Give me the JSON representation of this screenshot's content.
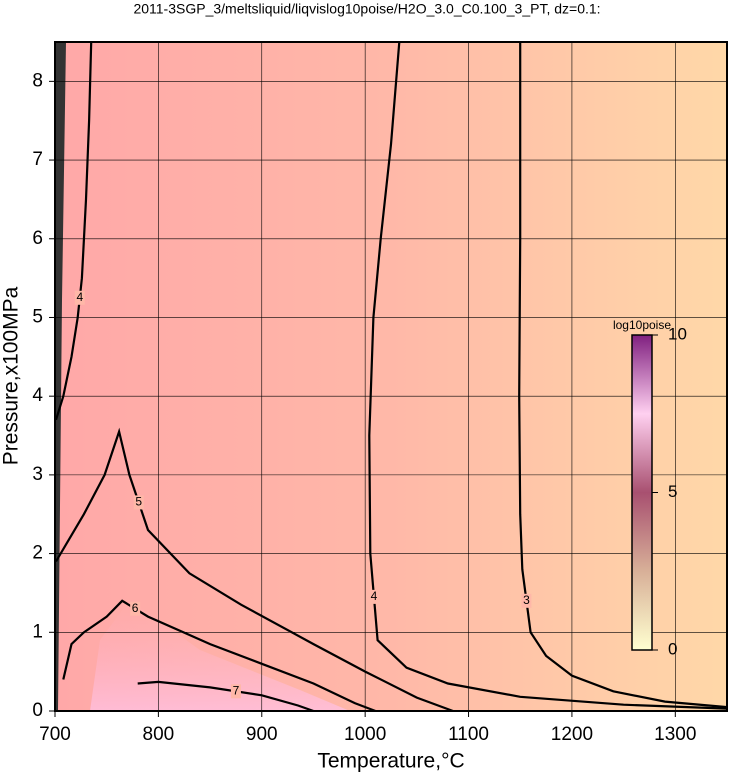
{
  "chart_data": {
    "type": "contour",
    "title": "2011-3SGP_3/meltsliquid/liqvislog10poise/H2O_3.0_C0.100_3_PT, dz=0.1:",
    "x_label": "Temperature,°C",
    "y_label": "Pressure,x100MPa",
    "xlim": [
      700,
      1350
    ],
    "xticks": [
      700,
      800,
      900,
      1000,
      1100,
      1200,
      1300
    ],
    "ylim": [
      0,
      8.5
    ],
    "yticks": [
      0,
      1,
      2,
      3,
      4,
      5,
      6,
      7,
      8
    ],
    "grid": true,
    "contours": [
      {
        "level": 3,
        "x": [
          1150,
          1150,
          1149,
          1150,
          1152,
          1160,
          1175,
          1200,
          1240,
          1290,
          1350
        ],
        "y": [
          8.5,
          6.0,
          4.0,
          2.5,
          1.8,
          1.0,
          0.7,
          0.45,
          0.25,
          0.12,
          0.05
        ]
      },
      {
        "level": 4,
        "x": [
          1033,
          1025,
          1015,
          1008,
          1004,
          1005,
          1012,
          1040,
          1080,
          1150,
          1250,
          1350
        ],
        "y": [
          8.5,
          7.2,
          6.0,
          5.0,
          3.5,
          2.0,
          0.9,
          0.55,
          0.35,
          0.18,
          0.08,
          0.03
        ]
      },
      {
        "level": 4,
        "x": [
          735,
          733,
          730,
          726,
          722,
          716,
          708,
          701
        ],
        "y": [
          8.5,
          7.5,
          6.5,
          5.5,
          5.0,
          4.5,
          4.0,
          3.7
        ]
      },
      {
        "level": 5,
        "x": [
          701,
          710,
          728,
          748,
          762,
          772,
          790,
          830,
          880,
          950,
          1000,
          1050,
          1085
        ],
        "y": [
          1.9,
          2.1,
          2.5,
          3.0,
          3.55,
          3.0,
          2.3,
          1.75,
          1.35,
          0.85,
          0.5,
          0.17,
          0.0
        ]
      },
      {
        "level": 6,
        "x": [
          708,
          716,
          728,
          750,
          765,
          790,
          850,
          900,
          950,
          990,
          1010
        ],
        "y": [
          0.4,
          0.85,
          1.0,
          1.2,
          1.4,
          1.2,
          0.85,
          0.6,
          0.35,
          0.1,
          0.0
        ]
      },
      {
        "level": 7,
        "x": [
          780,
          800,
          850,
          900,
          935,
          950
        ],
        "y": [
          0.35,
          0.37,
          0.3,
          0.2,
          0.07,
          0.0
        ]
      }
    ],
    "colorbar": {
      "label": "log10poise",
      "lim": [
        0,
        10
      ],
      "ticks": [
        0,
        5,
        10
      ],
      "colors": [
        "#ffffd0",
        "#d8b098",
        "#a85070",
        "#ffd0f0",
        "#802080"
      ]
    }
  }
}
